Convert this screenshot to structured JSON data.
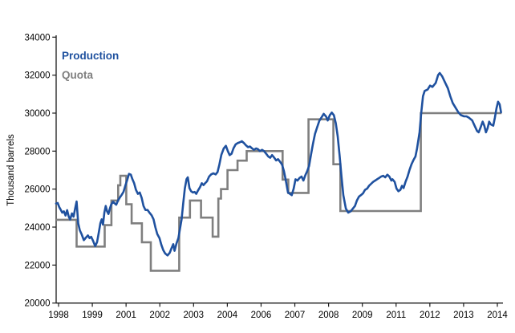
{
  "chart_data": {
    "type": "line",
    "title": "",
    "xlabel": "",
    "ylabel": "Thousand barrels",
    "ylim": [
      20000,
      34000
    ],
    "yticks": [
      20000,
      22000,
      24000,
      26000,
      28000,
      30000,
      32000,
      34000
    ],
    "xtick_labels": [
      "1998",
      "1999",
      "2001",
      "2002",
      "2003",
      "2004",
      "2006",
      "2007",
      "2008",
      "2009",
      "2011",
      "2012",
      "2013",
      "2014"
    ],
    "xtick_times": [
      1998.583,
      1999.833,
      2001.083,
      2002.333,
      2003.583,
      2004.833,
      2006.083,
      2007.333,
      2008.583,
      2009.833,
      2011.083,
      2012.333,
      2013.583,
      2014.833
    ],
    "x_unit": "decimal_year",
    "x_end": 2014.99,
    "grid": false,
    "legend_position": "top-left-inside",
    "axis_color": "#1a1a1a",
    "series": [
      {
        "name": "Production",
        "color": "#1f519f",
        "style": "line",
        "points": [
          [
            1998.49,
            25240
          ],
          [
            1998.55,
            25270
          ],
          [
            1998.61,
            25050
          ],
          [
            1998.66,
            24920
          ],
          [
            1998.72,
            24760
          ],
          [
            1998.78,
            24830
          ],
          [
            1998.84,
            24610
          ],
          [
            1998.9,
            24890
          ],
          [
            1998.96,
            24550
          ],
          [
            1999.01,
            24400
          ],
          [
            1999.08,
            24720
          ],
          [
            1999.14,
            24550
          ],
          [
            1999.2,
            25000
          ],
          [
            1999.25,
            25350
          ],
          [
            1999.31,
            24200
          ],
          [
            1999.37,
            23830
          ],
          [
            1999.44,
            23620
          ],
          [
            1999.52,
            23310
          ],
          [
            1999.6,
            23450
          ],
          [
            1999.67,
            23560
          ],
          [
            1999.73,
            23420
          ],
          [
            1999.79,
            23490
          ],
          [
            1999.86,
            23280
          ],
          [
            1999.94,
            23000
          ],
          [
            2000.01,
            23210
          ],
          [
            2000.07,
            23700
          ],
          [
            2000.13,
            24200
          ],
          [
            2000.18,
            24410
          ],
          [
            2000.23,
            24130
          ],
          [
            2000.28,
            24760
          ],
          [
            2000.33,
            25110
          ],
          [
            2000.38,
            24830
          ],
          [
            2000.43,
            24690
          ],
          [
            2000.48,
            24970
          ],
          [
            2000.53,
            25180
          ],
          [
            2000.6,
            25330
          ],
          [
            2000.66,
            25250
          ],
          [
            2000.72,
            25180
          ],
          [
            2000.78,
            25390
          ],
          [
            2000.85,
            25550
          ],
          [
            2000.92,
            25700
          ],
          [
            2000.99,
            25860
          ],
          [
            2001.06,
            26200
          ],
          [
            2001.13,
            26500
          ],
          [
            2001.19,
            26800
          ],
          [
            2001.26,
            26760
          ],
          [
            2001.32,
            26520
          ],
          [
            2001.38,
            26310
          ],
          [
            2001.45,
            25960
          ],
          [
            2001.52,
            25750
          ],
          [
            2001.59,
            25820
          ],
          [
            2001.66,
            25540
          ],
          [
            2001.73,
            25110
          ],
          [
            2001.8,
            24900
          ],
          [
            2001.88,
            24900
          ],
          [
            2001.95,
            24760
          ],
          [
            2002.03,
            24620
          ],
          [
            2002.1,
            24410
          ],
          [
            2002.17,
            23990
          ],
          [
            2002.24,
            23630
          ],
          [
            2002.32,
            23420
          ],
          [
            2002.39,
            23070
          ],
          [
            2002.46,
            22790
          ],
          [
            2002.53,
            22610
          ],
          [
            2002.62,
            22510
          ],
          [
            2002.7,
            22650
          ],
          [
            2002.77,
            22900
          ],
          [
            2002.83,
            23100
          ],
          [
            2002.88,
            22750
          ],
          [
            2002.95,
            23140
          ],
          [
            2003.02,
            23420
          ],
          [
            2003.08,
            23920
          ],
          [
            2003.14,
            24410
          ],
          [
            2003.2,
            25250
          ],
          [
            2003.26,
            26030
          ],
          [
            2003.32,
            26520
          ],
          [
            2003.37,
            26620
          ],
          [
            2003.43,
            26050
          ],
          [
            2003.49,
            25890
          ],
          [
            2003.56,
            25820
          ],
          [
            2003.62,
            25850
          ],
          [
            2003.68,
            25750
          ],
          [
            2003.75,
            25930
          ],
          [
            2003.82,
            26100
          ],
          [
            2003.89,
            26310
          ],
          [
            2003.95,
            26210
          ],
          [
            2004.01,
            26310
          ],
          [
            2004.08,
            26410
          ],
          [
            2004.16,
            26660
          ],
          [
            2004.24,
            26780
          ],
          [
            2004.32,
            26830
          ],
          [
            2004.4,
            26770
          ],
          [
            2004.47,
            26900
          ],
          [
            2004.54,
            27300
          ],
          [
            2004.61,
            27800
          ],
          [
            2004.7,
            28140
          ],
          [
            2004.78,
            28280
          ],
          [
            2004.85,
            28000
          ],
          [
            2004.92,
            27790
          ],
          [
            2004.99,
            27860
          ],
          [
            2005.06,
            28140
          ],
          [
            2005.14,
            28350
          ],
          [
            2005.21,
            28420
          ],
          [
            2005.29,
            28460
          ],
          [
            2005.37,
            28520
          ],
          [
            2005.45,
            28420
          ],
          [
            2005.52,
            28310
          ],
          [
            2005.6,
            28210
          ],
          [
            2005.67,
            28240
          ],
          [
            2005.75,
            28140
          ],
          [
            2005.82,
            28070
          ],
          [
            2005.9,
            28140
          ],
          [
            2005.97,
            28100
          ],
          [
            2006.04,
            28000
          ],
          [
            2006.12,
            28070
          ],
          [
            2006.19,
            28000
          ],
          [
            2006.27,
            27860
          ],
          [
            2006.35,
            27720
          ],
          [
            2006.42,
            27650
          ],
          [
            2006.49,
            27790
          ],
          [
            2006.57,
            27650
          ],
          [
            2006.64,
            27510
          ],
          [
            2006.71,
            27580
          ],
          [
            2006.79,
            27430
          ],
          [
            2006.86,
            27290
          ],
          [
            2006.93,
            26940
          ],
          [
            2007.0,
            26450
          ],
          [
            2007.08,
            25820
          ],
          [
            2007.15,
            25750
          ],
          [
            2007.22,
            25680
          ],
          [
            2007.29,
            26030
          ],
          [
            2007.36,
            26520
          ],
          [
            2007.43,
            26450
          ],
          [
            2007.51,
            26590
          ],
          [
            2007.58,
            26660
          ],
          [
            2007.65,
            26450
          ],
          [
            2007.72,
            26730
          ],
          [
            2007.79,
            26940
          ],
          [
            2007.86,
            27220
          ],
          [
            2007.93,
            27790
          ],
          [
            2008.0,
            28350
          ],
          [
            2008.08,
            28910
          ],
          [
            2008.16,
            29260
          ],
          [
            2008.24,
            29600
          ],
          [
            2008.31,
            29750
          ],
          [
            2008.4,
            29960
          ],
          [
            2008.49,
            29820
          ],
          [
            2008.55,
            29610
          ],
          [
            2008.63,
            29900
          ],
          [
            2008.7,
            30030
          ],
          [
            2008.78,
            29890
          ],
          [
            2008.85,
            29470
          ],
          [
            2008.92,
            28770
          ],
          [
            2008.99,
            27790
          ],
          [
            2009.06,
            26660
          ],
          [
            2009.13,
            25680
          ],
          [
            2009.22,
            24980
          ],
          [
            2009.31,
            24760
          ],
          [
            2009.4,
            24830
          ],
          [
            2009.48,
            24970
          ],
          [
            2009.56,
            25110
          ],
          [
            2009.63,
            25400
          ],
          [
            2009.71,
            25610
          ],
          [
            2009.78,
            25680
          ],
          [
            2009.86,
            25780
          ],
          [
            2009.93,
            25960
          ],
          [
            2010.01,
            26030
          ],
          [
            2010.08,
            26170
          ],
          [
            2010.16,
            26280
          ],
          [
            2010.23,
            26380
          ],
          [
            2010.31,
            26450
          ],
          [
            2010.38,
            26520
          ],
          [
            2010.46,
            26590
          ],
          [
            2010.53,
            26660
          ],
          [
            2010.61,
            26700
          ],
          [
            2010.68,
            26620
          ],
          [
            2010.76,
            26760
          ],
          [
            2010.83,
            26660
          ],
          [
            2010.91,
            26450
          ],
          [
            2010.95,
            26520
          ],
          [
            2011.03,
            26380
          ],
          [
            2011.1,
            26030
          ],
          [
            2011.17,
            25890
          ],
          [
            2011.24,
            25960
          ],
          [
            2011.3,
            26170
          ],
          [
            2011.36,
            26060
          ],
          [
            2011.43,
            26380
          ],
          [
            2011.51,
            26660
          ],
          [
            2011.58,
            27010
          ],
          [
            2011.65,
            27300
          ],
          [
            2011.72,
            27510
          ],
          [
            2011.8,
            27720
          ],
          [
            2011.86,
            28140
          ],
          [
            2011.95,
            28990
          ],
          [
            2012.01,
            29970
          ],
          [
            2012.08,
            30890
          ],
          [
            2012.14,
            31170
          ],
          [
            2012.25,
            31240
          ],
          [
            2012.34,
            31450
          ],
          [
            2012.43,
            31380
          ],
          [
            2012.55,
            31590
          ],
          [
            2012.64,
            32010
          ],
          [
            2012.7,
            32110
          ],
          [
            2012.79,
            31940
          ],
          [
            2012.88,
            31660
          ],
          [
            2013.0,
            31310
          ],
          [
            2013.09,
            30890
          ],
          [
            2013.18,
            30530
          ],
          [
            2013.3,
            30250
          ],
          [
            2013.39,
            30040
          ],
          [
            2013.48,
            29900
          ],
          [
            2013.6,
            29830
          ],
          [
            2013.69,
            29830
          ],
          [
            2013.78,
            29760
          ],
          [
            2013.9,
            29620
          ],
          [
            2013.99,
            29340
          ],
          [
            2014.08,
            29060
          ],
          [
            2014.14,
            28990
          ],
          [
            2014.2,
            29200
          ],
          [
            2014.29,
            29550
          ],
          [
            2014.35,
            29340
          ],
          [
            2014.41,
            28990
          ],
          [
            2014.47,
            29200
          ],
          [
            2014.53,
            29550
          ],
          [
            2014.59,
            29410
          ],
          [
            2014.68,
            29340
          ],
          [
            2014.74,
            29760
          ],
          [
            2014.8,
            30250
          ],
          [
            2014.86,
            30600
          ],
          [
            2014.92,
            30460
          ],
          [
            2014.97,
            30040
          ]
        ]
      },
      {
        "name": "Quota",
        "color": "#7f7f7f",
        "style": "step",
        "points": [
          [
            1998.49,
            24387
          ],
          [
            1999.25,
            22976
          ],
          [
            2000.29,
            24100
          ],
          [
            2000.54,
            25400
          ],
          [
            2000.79,
            26200
          ],
          [
            2000.87,
            26700
          ],
          [
            2001.09,
            25201
          ],
          [
            2001.29,
            24201
          ],
          [
            2001.67,
            23201
          ],
          [
            2002.0,
            21701
          ],
          [
            2003.05,
            24500
          ],
          [
            2003.45,
            25400
          ],
          [
            2003.86,
            24500
          ],
          [
            2004.29,
            23500
          ],
          [
            2004.5,
            25500
          ],
          [
            2004.6,
            26000
          ],
          [
            2004.84,
            27000
          ],
          [
            2005.21,
            27500
          ],
          [
            2005.55,
            28000
          ],
          [
            2006.88,
            26500
          ],
          [
            2007.09,
            25800
          ],
          [
            2007.84,
            29673
          ],
          [
            2008.76,
            27308
          ],
          [
            2009.02,
            24845
          ],
          [
            2012.0,
            30000
          ]
        ]
      }
    ]
  }
}
